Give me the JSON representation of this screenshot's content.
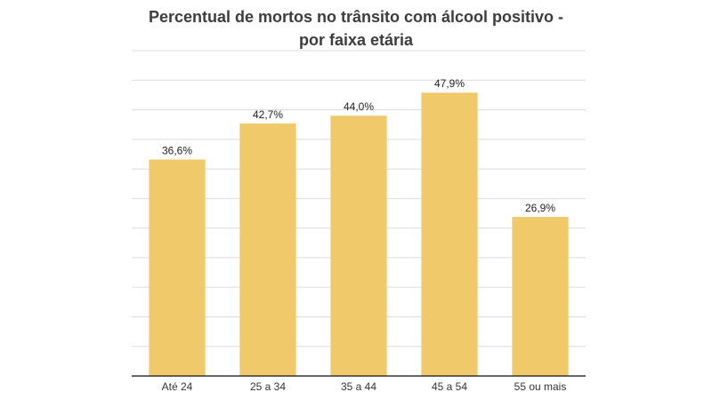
{
  "chart_data": {
    "type": "bar",
    "title_lines": [
      "Percentual de mortos no trânsito com álcool positivo -",
      "por faixa etária"
    ],
    "categories": [
      "Até 24",
      "25 a 34",
      "35 a 44",
      "45 a 54",
      "55 ou mais"
    ],
    "values": [
      36.6,
      42.7,
      44.0,
      47.9,
      26.9
    ],
    "value_labels": [
      "36,6%",
      "42,7%",
      "44,0%",
      "47,9%",
      "26,9%"
    ],
    "ylim": [
      0,
      55
    ],
    "grid_step": 5,
    "grid": true,
    "bar_color": "#f0c96b",
    "axis_color": "#333333",
    "grid_color": "#dcdcdc"
  }
}
